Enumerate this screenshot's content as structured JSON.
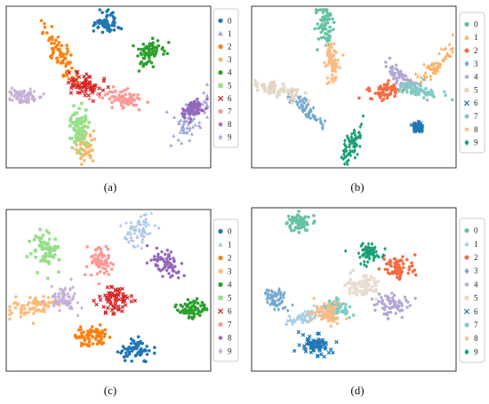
{
  "chart_data": [
    {
      "panel": "(a)",
      "type": "scatter",
      "caption": "(a)",
      "legend": {
        "position": "right",
        "entries": [
          "0",
          "1",
          "2",
          "3",
          "4",
          "5",
          "6",
          "7",
          "8",
          "9"
        ]
      },
      "clusters": [
        {
          "label": "0",
          "cx": 0.49,
          "cy": 0.1,
          "sx": 0.03,
          "sy": 0.035,
          "angle": -20
        },
        {
          "label": "1",
          "cx": 0.91,
          "cy": 0.7,
          "sx": 0.035,
          "sy": 0.09,
          "angle": 35
        },
        {
          "label": "2",
          "cx": 0.26,
          "cy": 0.29,
          "sx": 0.025,
          "sy": 0.09,
          "angle": -25
        },
        {
          "label": "3",
          "cx": 0.38,
          "cy": 0.86,
          "sx": 0.025,
          "sy": 0.05,
          "angle": 0
        },
        {
          "label": "4",
          "cx": 0.71,
          "cy": 0.29,
          "sx": 0.03,
          "sy": 0.04,
          "angle": 0
        },
        {
          "label": "5",
          "cx": 0.35,
          "cy": 0.74,
          "sx": 0.025,
          "sy": 0.07,
          "angle": 0
        },
        {
          "label": "6",
          "cx": 0.38,
          "cy": 0.49,
          "sx": 0.04,
          "sy": 0.045,
          "angle": -20
        },
        {
          "label": "7",
          "cx": 0.57,
          "cy": 0.58,
          "sx": 0.055,
          "sy": 0.03,
          "angle": 15
        },
        {
          "label": "8",
          "cx": 0.92,
          "cy": 0.64,
          "sx": 0.025,
          "sy": 0.03,
          "angle": 0
        },
        {
          "label": "9",
          "cx": 0.08,
          "cy": 0.56,
          "sx": 0.05,
          "sy": 0.025,
          "angle": 10
        }
      ]
    },
    {
      "panel": "(b)",
      "type": "scatter",
      "caption": "(b)",
      "legend": {
        "position": "right",
        "entries": [
          "0",
          "1",
          "2",
          "3",
          "4",
          "5",
          "6",
          "7",
          "8",
          "9"
        ]
      },
      "clusters": [
        {
          "label": "0",
          "cx": 0.36,
          "cy": 0.11,
          "sx": 0.022,
          "sy": 0.07,
          "angle": 0
        },
        {
          "label": "1",
          "cx": 0.9,
          "cy": 0.37,
          "sx": 0.02,
          "sy": 0.08,
          "angle": 40
        },
        {
          "label": "2",
          "cx": 0.66,
          "cy": 0.53,
          "sx": 0.045,
          "sy": 0.025,
          "angle": -15
        },
        {
          "label": "3",
          "cx": 0.25,
          "cy": 0.63,
          "sx": 0.02,
          "sy": 0.08,
          "angle": -35
        },
        {
          "label": "4",
          "cx": 0.73,
          "cy": 0.44,
          "sx": 0.02,
          "sy": 0.06,
          "angle": -40
        },
        {
          "label": "5",
          "cx": 0.12,
          "cy": 0.52,
          "sx": 0.07,
          "sy": 0.02,
          "angle": 20
        },
        {
          "label": "6",
          "cx": 0.82,
          "cy": 0.75,
          "sx": 0.012,
          "sy": 0.015,
          "angle": 0
        },
        {
          "label": "7",
          "cx": 0.81,
          "cy": 0.52,
          "sx": 0.05,
          "sy": 0.02,
          "angle": 15
        },
        {
          "label": "8",
          "cx": 0.39,
          "cy": 0.33,
          "sx": 0.015,
          "sy": 0.06,
          "angle": 0
        },
        {
          "label": "9",
          "cx": 0.49,
          "cy": 0.87,
          "sx": 0.02,
          "sy": 0.06,
          "angle": 20
        }
      ]
    },
    {
      "panel": "(c)",
      "type": "scatter",
      "caption": "(c)",
      "legend": {
        "position": "right",
        "entries": [
          "0",
          "1",
          "2",
          "3",
          "4",
          "5",
          "6",
          "7",
          "8",
          "9"
        ]
      },
      "clusters": [
        {
          "label": "0",
          "cx": 0.64,
          "cy": 0.88,
          "sx": 0.04,
          "sy": 0.035,
          "angle": 0
        },
        {
          "label": "1",
          "cx": 0.65,
          "cy": 0.12,
          "sx": 0.035,
          "sy": 0.05,
          "angle": 20
        },
        {
          "label": "2",
          "cx": 0.42,
          "cy": 0.79,
          "sx": 0.045,
          "sy": 0.035,
          "angle": 0
        },
        {
          "label": "3",
          "cx": 0.13,
          "cy": 0.6,
          "sx": 0.06,
          "sy": 0.03,
          "angle": -15
        },
        {
          "label": "4",
          "cx": 0.92,
          "cy": 0.62,
          "sx": 0.04,
          "sy": 0.03,
          "angle": 0
        },
        {
          "label": "5",
          "cx": 0.19,
          "cy": 0.25,
          "sx": 0.035,
          "sy": 0.055,
          "angle": 0
        },
        {
          "label": "6",
          "cx": 0.53,
          "cy": 0.56,
          "sx": 0.035,
          "sy": 0.04,
          "angle": 0
        },
        {
          "label": "7",
          "cx": 0.46,
          "cy": 0.31,
          "sx": 0.03,
          "sy": 0.045,
          "angle": 0
        },
        {
          "label": "8",
          "cx": 0.78,
          "cy": 0.33,
          "sx": 0.03,
          "sy": 0.05,
          "angle": -30
        },
        {
          "label": "9",
          "cx": 0.27,
          "cy": 0.55,
          "sx": 0.035,
          "sy": 0.04,
          "angle": 0
        }
      ]
    },
    {
      "panel": "(d)",
      "type": "scatter",
      "caption": "(d)",
      "legend": {
        "position": "right",
        "entries": [
          "0",
          "1",
          "2",
          "3",
          "4",
          "5",
          "6",
          "7",
          "8",
          "9"
        ]
      },
      "clusters": [
        {
          "label": "0",
          "cx": 0.23,
          "cy": 0.08,
          "sx": 0.03,
          "sy": 0.03,
          "angle": 0
        },
        {
          "label": "1",
          "cx": 0.25,
          "cy": 0.67,
          "sx": 0.05,
          "sy": 0.02,
          "angle": -20
        },
        {
          "label": "2",
          "cx": 0.72,
          "cy": 0.37,
          "sx": 0.04,
          "sy": 0.04,
          "angle": 0
        },
        {
          "label": "3",
          "cx": 0.11,
          "cy": 0.56,
          "sx": 0.03,
          "sy": 0.035,
          "angle": -30
        },
        {
          "label": "4",
          "cx": 0.69,
          "cy": 0.6,
          "sx": 0.045,
          "sy": 0.04,
          "angle": 0
        },
        {
          "label": "5",
          "cx": 0.53,
          "cy": 0.47,
          "sx": 0.04,
          "sy": 0.04,
          "angle": 0
        },
        {
          "label": "6",
          "cx": 0.31,
          "cy": 0.85,
          "sx": 0.045,
          "sy": 0.035,
          "angle": 0
        },
        {
          "label": "7",
          "cx": 0.41,
          "cy": 0.62,
          "sx": 0.035,
          "sy": 0.03,
          "angle": 0
        },
        {
          "label": "8",
          "cx": 0.37,
          "cy": 0.65,
          "sx": 0.035,
          "sy": 0.03,
          "angle": 0
        },
        {
          "label": "9",
          "cx": 0.57,
          "cy": 0.27,
          "sx": 0.035,
          "sy": 0.03,
          "angle": 0
        }
      ]
    }
  ],
  "styles": {
    "panel_a": [
      {
        "color": "#1f77b4",
        "marker": "circle"
      },
      {
        "color": "#9aa3d8",
        "marker": "triangle"
      },
      {
        "color": "#ff7f0e",
        "marker": "circle"
      },
      {
        "color": "#f7b96b",
        "marker": "circle"
      },
      {
        "color": "#2ca02c",
        "marker": "circle"
      },
      {
        "color": "#98df8a",
        "marker": "square"
      },
      {
        "color": "#d62728",
        "marker": "x"
      },
      {
        "color": "#ff9896",
        "marker": "circle"
      },
      {
        "color": "#9467bd",
        "marker": "star"
      },
      {
        "color": "#c5b0d5",
        "marker": "diamond"
      }
    ],
    "panel_b": [
      {
        "color": "#66c2a5",
        "marker": "circle"
      },
      {
        "color": "#fdae61",
        "marker": "triangle"
      },
      {
        "color": "#f46d43",
        "marker": "circle"
      },
      {
        "color": "#74a9cf",
        "marker": "diamond"
      },
      {
        "color": "#b3a7d6",
        "marker": "star"
      },
      {
        "color": "#e5d8c8",
        "marker": "square"
      },
      {
        "color": "#1f78b4",
        "marker": "x"
      },
      {
        "color": "#7ecdc4",
        "marker": "circle"
      },
      {
        "color": "#fdbb84",
        "marker": "star"
      },
      {
        "color": "#1b9e77",
        "marker": "diamond"
      }
    ],
    "panel_c": [
      {
        "color": "#1f77b4",
        "marker": "circle"
      },
      {
        "color": "#aec7e8",
        "marker": "triangle"
      },
      {
        "color": "#ff7f0e",
        "marker": "circle"
      },
      {
        "color": "#ffbb78",
        "marker": "circle"
      },
      {
        "color": "#2ca02c",
        "marker": "circle"
      },
      {
        "color": "#98df8a",
        "marker": "square"
      },
      {
        "color": "#d62728",
        "marker": "x"
      },
      {
        "color": "#ff9896",
        "marker": "circle"
      },
      {
        "color": "#9467bd",
        "marker": "star"
      },
      {
        "color": "#c5b0d5",
        "marker": "diamond"
      }
    ],
    "panel_d": [
      {
        "color": "#66c2a5",
        "marker": "circle"
      },
      {
        "color": "#a6cee3",
        "marker": "triangle"
      },
      {
        "color": "#f46d43",
        "marker": "circle"
      },
      {
        "color": "#74a9cf",
        "marker": "diamond"
      },
      {
        "color": "#b3a7d6",
        "marker": "star"
      },
      {
        "color": "#e8dccf",
        "marker": "square"
      },
      {
        "color": "#1f78b4",
        "marker": "x"
      },
      {
        "color": "#7ecdc4",
        "marker": "circle"
      },
      {
        "color": "#fdbb84",
        "marker": "star"
      },
      {
        "color": "#1b9e77",
        "marker": "diamond"
      }
    ]
  }
}
